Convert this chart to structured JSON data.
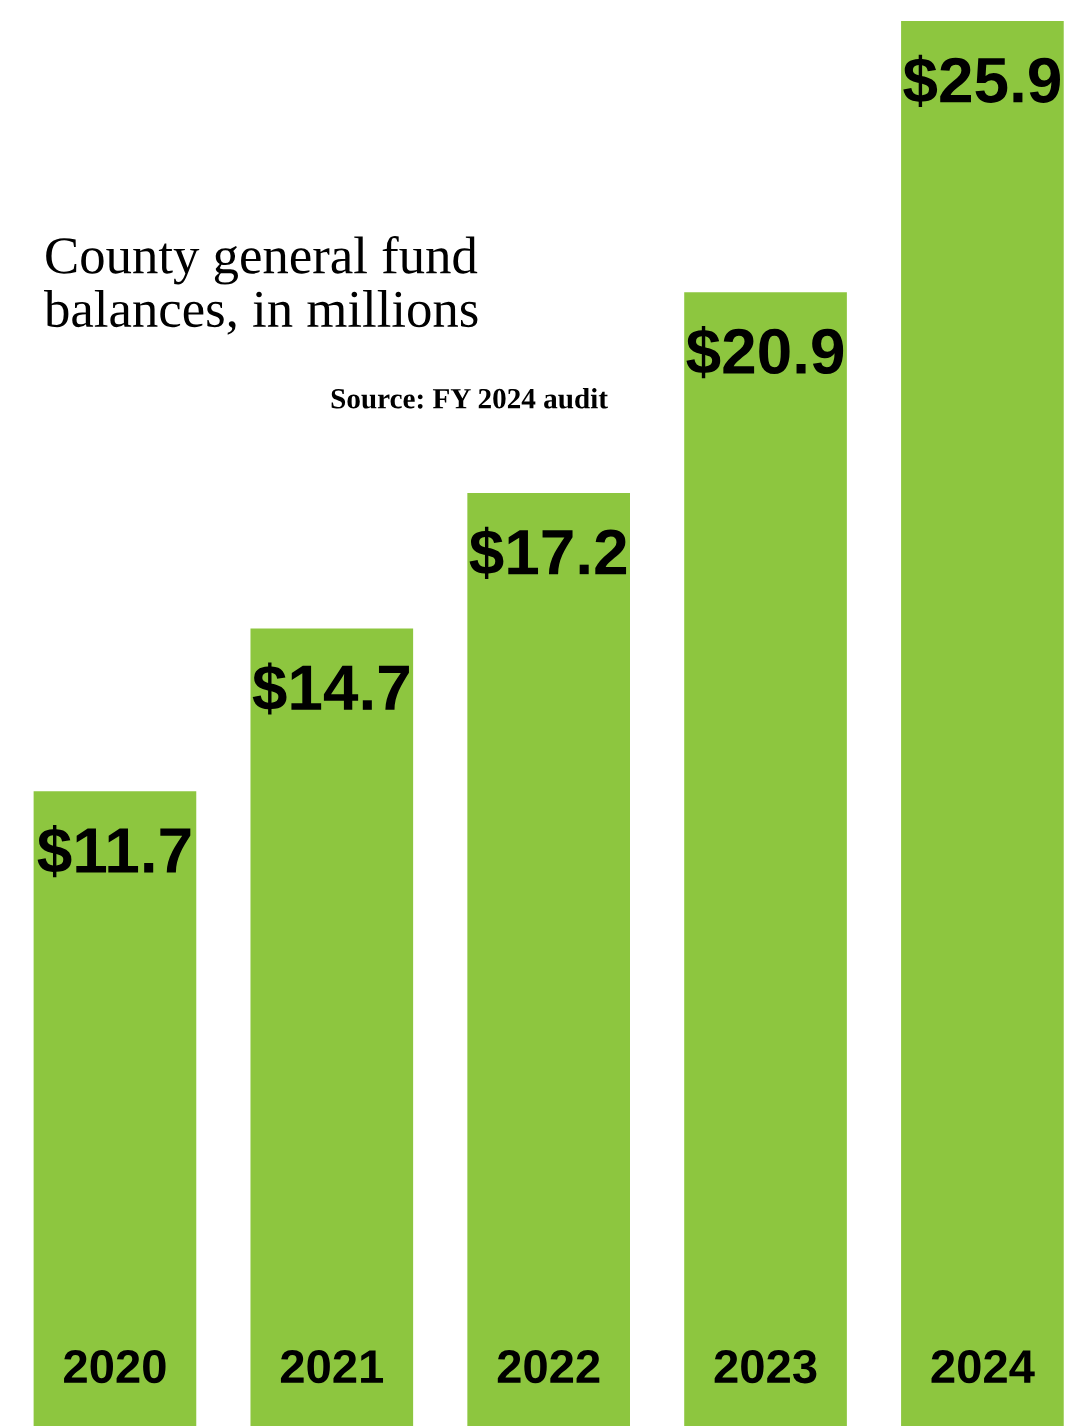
{
  "chart_data": {
    "type": "bar",
    "title": "County general fund\nbalances, in millions",
    "annotations": [
      "Source: FY 2024 audit"
    ],
    "categories": [
      "2020",
      "2021",
      "2022",
      "2023",
      "2024"
    ],
    "values": [
      11.7,
      14.7,
      17.2,
      20.9,
      25.9
    ],
    "value_labels": [
      "$11.7",
      "$14.7",
      "$17.2",
      "$20.9",
      "$25.9"
    ],
    "color": "#8dc63f"
  }
}
